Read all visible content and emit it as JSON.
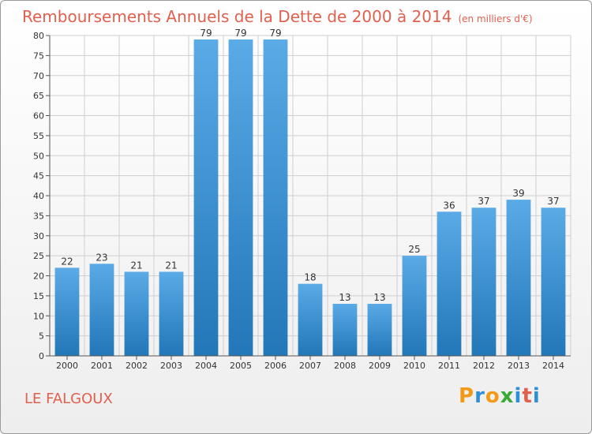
{
  "title": "Remboursements Annuels de la Dette de 2000 à 2014",
  "unit": "(en milliers d'€)",
  "footer": "LE FALGOUX",
  "brand": {
    "text": "Proxiti",
    "letters": [
      "P",
      "r",
      "o",
      "x",
      "i",
      "t",
      "i"
    ],
    "colors": [
      "#f29a16",
      "#2f8fd6",
      "#f29a16",
      "#3aa935",
      "#2f8fd6",
      "#e0604e",
      "#2f8fd6"
    ]
  },
  "colors": {
    "bar_top": "#5aaae6",
    "bar_bottom": "#2277b8",
    "grid": "#cfcfcf",
    "accent": "#e0604e"
  },
  "chart_data": {
    "type": "bar",
    "title": "Remboursements Annuels de la Dette de 2000 à 2014",
    "xlabel": "",
    "ylabel": "",
    "categories": [
      "2000",
      "2001",
      "2002",
      "2003",
      "2004",
      "2005",
      "2006",
      "2007",
      "2008",
      "2009",
      "2010",
      "2011",
      "2012",
      "2013",
      "2014"
    ],
    "values": [
      22,
      23,
      21,
      21,
      79,
      79,
      79,
      18,
      13,
      13,
      25,
      36,
      37,
      39,
      37
    ],
    "ylim": [
      0,
      80
    ],
    "ytick_step": 5,
    "grid": true,
    "data_labels": true
  }
}
